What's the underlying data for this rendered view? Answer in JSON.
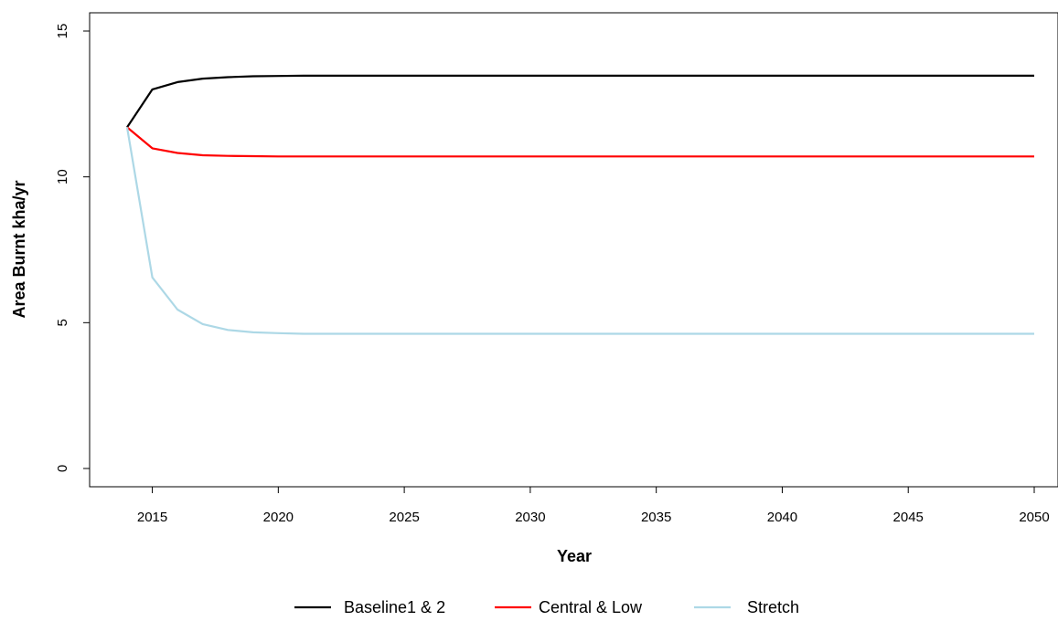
{
  "chart_data": {
    "type": "line",
    "title": "",
    "xlabel": "Year",
    "ylabel": "Area Burnt kha/yr",
    "xlim": [
      2014,
      2050
    ],
    "ylim": [
      0,
      15
    ],
    "x_ticks": [
      2015,
      2020,
      2025,
      2030,
      2035,
      2040,
      2045,
      2050
    ],
    "y_ticks": [
      0,
      5,
      10,
      15
    ],
    "grid": false,
    "legend_position": "bottom",
    "x": [
      2014,
      2015,
      2016,
      2017,
      2018,
      2019,
      2020,
      2021,
      2022,
      2023,
      2024,
      2025,
      2026,
      2027,
      2028,
      2029,
      2030,
      2031,
      2032,
      2033,
      2034,
      2035,
      2036,
      2037,
      2038,
      2039,
      2040,
      2041,
      2042,
      2043,
      2044,
      2045,
      2046,
      2047,
      2048,
      2049,
      2050
    ],
    "series": [
      {
        "name": "Baseline1 & 2",
        "color": "#000000",
        "values": [
          11.7,
          13.0,
          13.25,
          13.37,
          13.42,
          13.45,
          13.46,
          13.47,
          13.47,
          13.47,
          13.47,
          13.47,
          13.47,
          13.47,
          13.47,
          13.47,
          13.47,
          13.47,
          13.47,
          13.47,
          13.47,
          13.47,
          13.47,
          13.47,
          13.47,
          13.47,
          13.47,
          13.47,
          13.47,
          13.47,
          13.47,
          13.47,
          13.47,
          13.47,
          13.47,
          13.47,
          13.47
        ]
      },
      {
        "name": "Central & Low",
        "color": "#ff0000",
        "values": [
          11.7,
          10.98,
          10.82,
          10.74,
          10.72,
          10.71,
          10.7,
          10.7,
          10.7,
          10.7,
          10.7,
          10.7,
          10.7,
          10.7,
          10.7,
          10.7,
          10.7,
          10.7,
          10.7,
          10.7,
          10.7,
          10.7,
          10.7,
          10.7,
          10.7,
          10.7,
          10.7,
          10.7,
          10.7,
          10.7,
          10.7,
          10.7,
          10.7,
          10.7,
          10.7,
          10.7,
          10.7
        ]
      },
      {
        "name": "Stretch",
        "color": "#add8e6",
        "values": [
          11.7,
          6.55,
          5.45,
          4.95,
          4.75,
          4.67,
          4.64,
          4.62,
          4.62,
          4.62,
          4.62,
          4.62,
          4.62,
          4.62,
          4.62,
          4.62,
          4.62,
          4.62,
          4.62,
          4.62,
          4.62,
          4.62,
          4.62,
          4.62,
          4.62,
          4.62,
          4.62,
          4.62,
          4.62,
          4.62,
          4.62,
          4.62,
          4.62,
          4.62,
          4.62,
          4.62,
          4.62
        ]
      }
    ]
  }
}
